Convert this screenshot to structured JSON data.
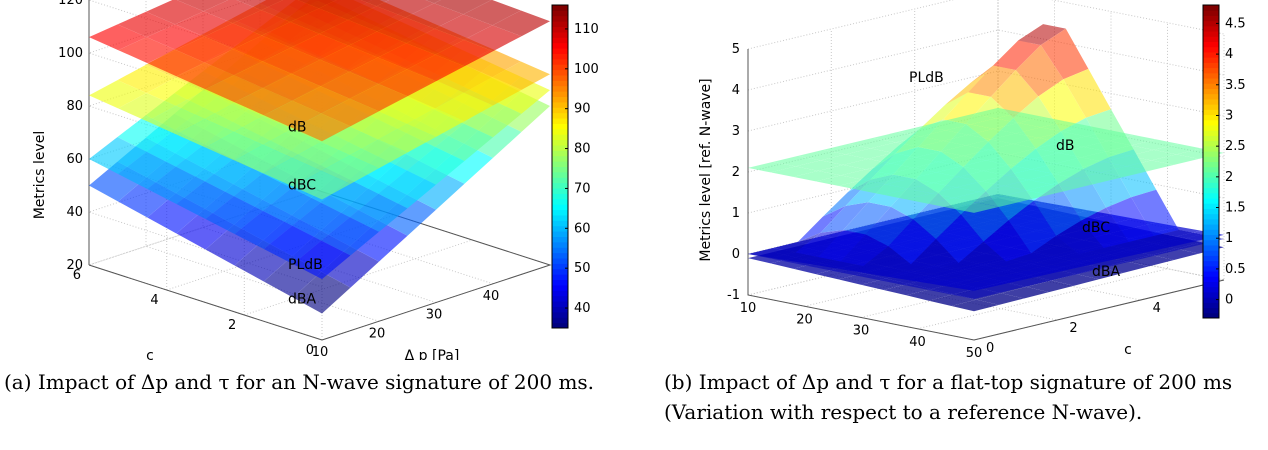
{
  "captions": {
    "a": "(a) Impact of Δp and τ for an N-wave signature of 200 ms.",
    "b": "(b) Impact of Δp and τ for a flat-top signature of 200 ms (Variation with respect to a reference N-wave)."
  },
  "chart_data": [
    {
      "type": "surface3d",
      "title": "",
      "xlabel": "Δ p [Pa]",
      "ylabel": "c",
      "zlabel": "Metrics level",
      "x_ticks": [
        "10",
        "20",
        "30",
        "40"
      ],
      "y_ticks": [
        "0",
        "2",
        "4",
        "6"
      ],
      "z_ticks": [
        "20",
        "40",
        "60",
        "80",
        "100",
        "120"
      ],
      "xlim": [
        10,
        50
      ],
      "ylim": [
        0,
        6
      ],
      "zlim": [
        20,
        120
      ],
      "colorbar_ticks": [
        "40",
        "50",
        "60",
        "70",
        "80",
        "90",
        "100",
        "110"
      ],
      "colorbar_range": [
        35,
        116
      ],
      "colormap": "jet",
      "grid": true,
      "series": [
        {
          "name": "dB",
          "corner_values": {
            "p10_c0": 95,
            "p50_c0": 112,
            "p10_c6": 106,
            "p50_c6": 116
          }
        },
        {
          "name": "dBC",
          "corner_values": {
            "p10_c0": 73,
            "p50_c0": 92,
            "p10_c6": 84,
            "p50_c6": 102
          }
        },
        {
          "name": "PLdB",
          "corner_values": {
            "p10_c0": 43,
            "p50_c0": 86,
            "p10_c6": 60,
            "p50_c6": 98
          }
        },
        {
          "name": "dBA",
          "corner_values": {
            "p10_c0": 30,
            "p50_c0": 80,
            "p10_c6": 50,
            "p50_c6": 94
          }
        }
      ]
    },
    {
      "type": "surface3d",
      "title": "",
      "xlabel": "Δ p [Pa]",
      "ylabel": "c",
      "zlabel": "Metrics level [ref. N-wave]",
      "x_ticks": [
        "10",
        "20",
        "30",
        "40",
        "50"
      ],
      "y_ticks": [
        "0",
        "2",
        "4"
      ],
      "z_ticks": [
        "-1",
        "0",
        "1",
        "2",
        "3",
        "4",
        "5"
      ],
      "xlim": [
        10,
        50
      ],
      "ylim": [
        0,
        6
      ],
      "zlim": [
        -1,
        5
      ],
      "colorbar_ticks": [
        "0",
        "0.5",
        "1",
        "1.5",
        "2",
        "2.5",
        "3",
        "3.5",
        "4",
        "4.5"
      ],
      "colorbar_range": [
        -0.3,
        4.8
      ],
      "colormap": "jet",
      "grid": true,
      "series": [
        {
          "name": "PLdB",
          "peak_value": 4.8,
          "peak_at": {
            "dp": 20,
            "c": 6
          }
        },
        {
          "name": "dB",
          "corner_values": {
            "p10_c0": 2.1,
            "p50_c0": 2.1,
            "p10_c6": 2.1,
            "p50_c6": 2.1
          }
        },
        {
          "name": "dBC",
          "corner_values": {
            "p10_c0": 0.0,
            "p50_c0": 0.2,
            "p10_c6": 0.0,
            "p50_c6": 0.1
          }
        },
        {
          "name": "dBA",
          "corner_values": {
            "p10_c0": -0.1,
            "p50_c0": -0.3,
            "p10_c6": -0.1,
            "p50_c6": -0.2
          }
        }
      ]
    }
  ]
}
